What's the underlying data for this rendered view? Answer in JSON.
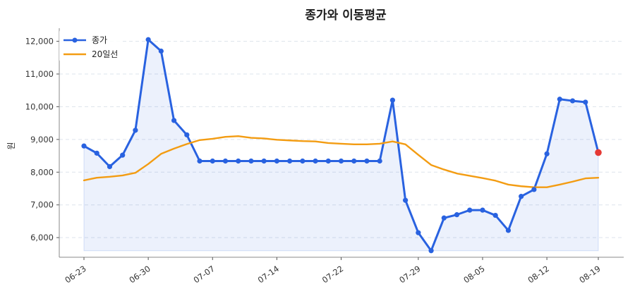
{
  "chart_data": {
    "type": "line",
    "title": "종가와 이동평균",
    "xlabel": "",
    "ylabel": "원",
    "ylim": [
      5400,
      12400
    ],
    "yticks": [
      6000,
      7000,
      8000,
      9000,
      10000,
      11000,
      12000
    ],
    "ytick_labels": [
      "6,000",
      "7,000",
      "8,000",
      "9,000",
      "10,000",
      "11,000",
      "12,000"
    ],
    "xtick_labels": [
      "06-23",
      "06-30",
      "07-07",
      "07-14",
      "07-22",
      "07-29",
      "08-05",
      "08-12",
      "08-19"
    ],
    "xtick_indices": [
      0,
      5,
      10,
      15,
      20,
      26,
      31,
      36,
      40
    ],
    "x": [
      "06-23",
      "06-24",
      "06-25",
      "06-26",
      "06-27",
      "06-30",
      "07-01",
      "07-02",
      "07-03",
      "07-04",
      "07-07",
      "07-08",
      "07-09",
      "07-10",
      "07-11",
      "07-14",
      "07-15",
      "07-16",
      "07-17",
      "07-18",
      "07-22",
      "07-23",
      "07-24",
      "07-25",
      "07-26",
      "07-28",
      "07-29",
      "07-30",
      "07-31",
      "08-01",
      "08-04",
      "08-05",
      "08-06",
      "08-07",
      "08-08",
      "08-11",
      "08-12",
      "08-13",
      "08-14",
      "08-18",
      "08-19"
    ],
    "grid": true,
    "legend_position": "top-left",
    "series": [
      {
        "name": "종가",
        "color": "#2962e0",
        "markers": true,
        "fill": true,
        "values": [
          8800,
          8580,
          8170,
          8520,
          9280,
          12050,
          11700,
          9580,
          9140,
          8340,
          8340,
          8340,
          8340,
          8340,
          8340,
          8340,
          8340,
          8340,
          8340,
          8340,
          8340,
          8340,
          8340,
          8340,
          10200,
          7140,
          6150,
          5600,
          6600,
          6700,
          6840,
          6840,
          6680,
          6220,
          7260,
          7470,
          8560,
          10230,
          10180,
          10140,
          8600
        ]
      },
      {
        "name": "20일선",
        "color": "#f39c12",
        "markers": false,
        "fill": false,
        "values": [
          7750,
          7830,
          7860,
          7900,
          7980,
          8250,
          8560,
          8720,
          8860,
          8980,
          9020,
          9080,
          9100,
          9050,
          9030,
          8990,
          8970,
          8950,
          8940,
          8890,
          8870,
          8850,
          8850,
          8870,
          8940,
          8850,
          8530,
          8220,
          8080,
          7960,
          7890,
          7820,
          7740,
          7620,
          7570,
          7540,
          7540,
          7620,
          7710,
          7810,
          7830
        ]
      }
    ],
    "highlight_last_color": "#e53935"
  }
}
